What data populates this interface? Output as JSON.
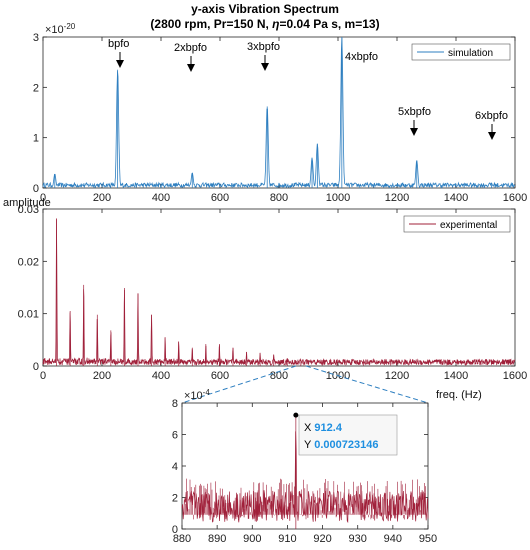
{
  "title_line1": "y-axis Vibration Spectrum",
  "title_line2_pre": "(2800 rpm, Pr=150 N, ",
  "title_eta": "η",
  "title_line2_post": "=0.04 Pa s, m=13)",
  "colors": {
    "simulation": "#2e7fc0",
    "experimental": "#a0203a",
    "axis": "#262626",
    "zoom_link": "#2e7fc0"
  },
  "chart_data": [
    {
      "type": "line",
      "id": "simulation",
      "title": "y-axis Vibration Spectrum",
      "xlim": [
        0,
        1600
      ],
      "ylim": [
        0,
        3
      ],
      "y_exponent_label": "×10",
      "y_exponent_power": "-20",
      "x_ticks": [
        0,
        200,
        400,
        600,
        800,
        1000,
        1200,
        1400,
        1600
      ],
      "y_ticks": [
        0,
        1,
        2,
        3
      ],
      "legend": {
        "position": "top-right",
        "entries": [
          "simulation"
        ]
      },
      "series": [
        {
          "name": "simulation",
          "baseline": 0.05,
          "peaks": [
            {
              "x": 40,
              "y": 0.28
            },
            {
              "x": 253,
              "y": 2.35
            },
            {
              "x": 506,
              "y": 0.3
            },
            {
              "x": 760,
              "y": 1.62
            },
            {
              "x": 912,
              "y": 0.6
            },
            {
              "x": 930,
              "y": 0.88
            },
            {
              "x": 1013,
              "y": 3.0
            },
            {
              "x": 1267,
              "y": 0.55
            },
            {
              "x": 1520,
              "y": 0.1
            }
          ]
        }
      ],
      "annotations": [
        {
          "text": "bpfo",
          "x": 253,
          "y": 2.35
        },
        {
          "text": "2xbpfo",
          "x": 506,
          "y": 0.3
        },
        {
          "text": "3xbpfo",
          "x": 760,
          "y": 1.62
        },
        {
          "text": "4xbpfo",
          "x": 1013,
          "y": 3.0
        },
        {
          "text": "5xbpfo",
          "x": 1267,
          "y": 0.55
        },
        {
          "text": "6xbpfo",
          "x": 1520,
          "y": 0.1
        }
      ]
    },
    {
      "type": "line",
      "id": "experimental",
      "xlim": [
        0,
        1600
      ],
      "ylim": [
        0,
        0.03
      ],
      "ylabel": "amplitude",
      "xlabel": "freq. (Hz)",
      "x_ticks": [
        0,
        200,
        400,
        600,
        800,
        1000,
        1200,
        1400,
        1600
      ],
      "y_ticks": [
        0,
        0.01,
        0.02,
        0.03
      ],
      "y_tick_labels": [
        "0",
        "0.01",
        "0.02",
        "0.03"
      ],
      "legend": {
        "position": "top-right",
        "entries": [
          "experimental"
        ]
      },
      "series": [
        {
          "name": "experimental",
          "baseline": 0.0007,
          "peaks": [
            {
              "x": 46,
              "y": 0.0282
            },
            {
              "x": 92,
              "y": 0.0105
            },
            {
              "x": 138,
              "y": 0.0155
            },
            {
              "x": 184,
              "y": 0.0098
            },
            {
              "x": 230,
              "y": 0.0068
            },
            {
              "x": 276,
              "y": 0.0149
            },
            {
              "x": 322,
              "y": 0.0139
            },
            {
              "x": 368,
              "y": 0.0098
            },
            {
              "x": 414,
              "y": 0.0055
            },
            {
              "x": 460,
              "y": 0.0047
            },
            {
              "x": 506,
              "y": 0.0035
            },
            {
              "x": 552,
              "y": 0.0042
            },
            {
              "x": 598,
              "y": 0.0042
            },
            {
              "x": 644,
              "y": 0.0035
            },
            {
              "x": 690,
              "y": 0.0027
            },
            {
              "x": 736,
              "y": 0.0025
            },
            {
              "x": 782,
              "y": 0.0022
            },
            {
              "x": 828,
              "y": 0.0015
            },
            {
              "x": 874,
              "y": 0.0012
            }
          ]
        }
      ]
    },
    {
      "type": "line",
      "id": "zoom",
      "xlim": [
        880,
        950
      ],
      "ylim": [
        0,
        8
      ],
      "y_exponent_label": "×10",
      "y_exponent_power": "-4",
      "x_ticks": [
        880,
        890,
        900,
        910,
        920,
        930,
        940,
        950
      ],
      "y_ticks": [
        0,
        2,
        4,
        6,
        8
      ],
      "series": [
        {
          "name": "experimental",
          "baseline": 1.7,
          "peaks": [
            {
              "x": 912.4,
              "y": 7.23146
            }
          ]
        }
      ],
      "datatip": {
        "x_label": "X",
        "x_value": "912.4",
        "y_label": "Y",
        "y_value": "0.000723146"
      }
    }
  ]
}
